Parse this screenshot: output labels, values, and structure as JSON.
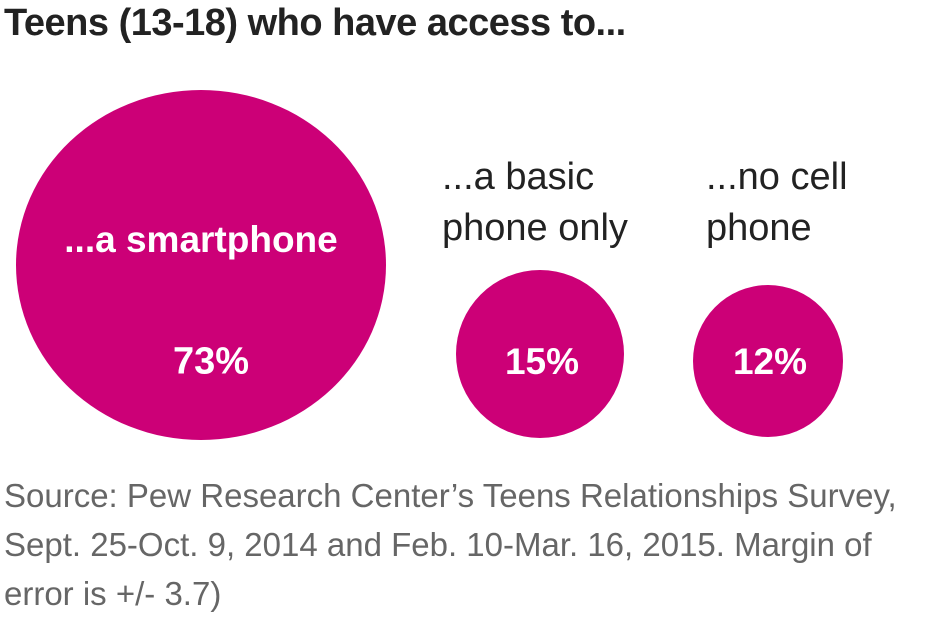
{
  "title": "Teens (13-18) who have access to...",
  "chart_data": {
    "type": "bubble",
    "title": "Teens (13-18) who have access to...",
    "categories": [
      "...a smartphone",
      "...a basic phone only",
      "...no cell phone"
    ],
    "values": [
      73,
      15,
      12
    ],
    "unit": "%",
    "color": "#cc0077",
    "labels": {
      "smartphone": {
        "name": "...a smartphone",
        "value": "73%"
      },
      "basic": {
        "name": "...a basic\nphone only",
        "value": "15%"
      },
      "none": {
        "name": "...no cell\nphone",
        "value": "12%"
      }
    }
  },
  "source": "Source:  Pew Research Center’s Teens Relationships Survey, Sept. 25-Oct. 9, 2014 and Feb. 10-Mar. 16, 2015. Margin of error is +/- 3.7)"
}
